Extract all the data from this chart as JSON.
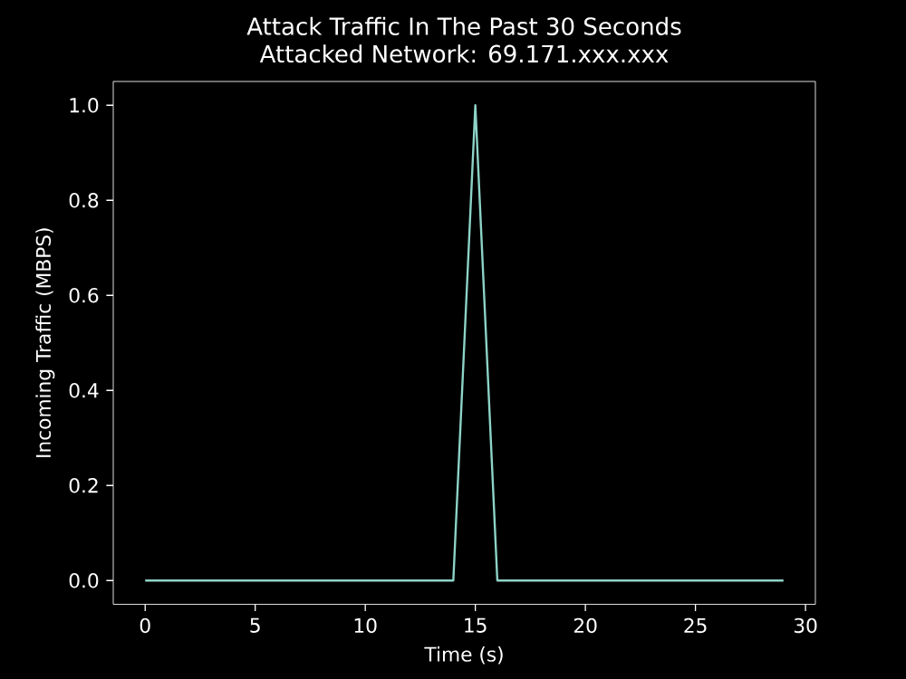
{
  "chart_data": {
    "type": "line",
    "title": "Attack Traffic In The Past 30 Seconds",
    "subtitle": "Attacked Network: 69.171.xxx.xxx",
    "xlabel": "Time (s)",
    "ylabel": "Incoming Traffic (MBPS)",
    "x": [
      0,
      1,
      2,
      3,
      4,
      5,
      6,
      7,
      8,
      9,
      10,
      11,
      12,
      13,
      14,
      15,
      16,
      17,
      18,
      19,
      20,
      21,
      22,
      23,
      24,
      25,
      26,
      27,
      28,
      29
    ],
    "series": [
      {
        "color": "#8dd3c7",
        "values": [
          0,
          0,
          0,
          0,
          0,
          0,
          0,
          0,
          0,
          0,
          0,
          0,
          0,
          0,
          0,
          1.0,
          0,
          0,
          0,
          0,
          0,
          0,
          0,
          0,
          0,
          0,
          0,
          0,
          0,
          0
        ]
      }
    ],
    "xlim": [
      -1.45,
      30.45
    ],
    "ylim": [
      -0.05,
      1.05
    ],
    "xticks": [
      0,
      5,
      10,
      15,
      20,
      25,
      30
    ],
    "yticks": [
      {
        "value": 0,
        "label": "0.0"
      },
      {
        "value": 0.2,
        "label": "0.2"
      },
      {
        "value": 0.4,
        "label": "0.4"
      },
      {
        "value": 0.6,
        "label": "0.6"
      },
      {
        "value": 0.8,
        "label": "0.8"
      },
      {
        "value": 1.0,
        "label": "1.0"
      }
    ]
  }
}
